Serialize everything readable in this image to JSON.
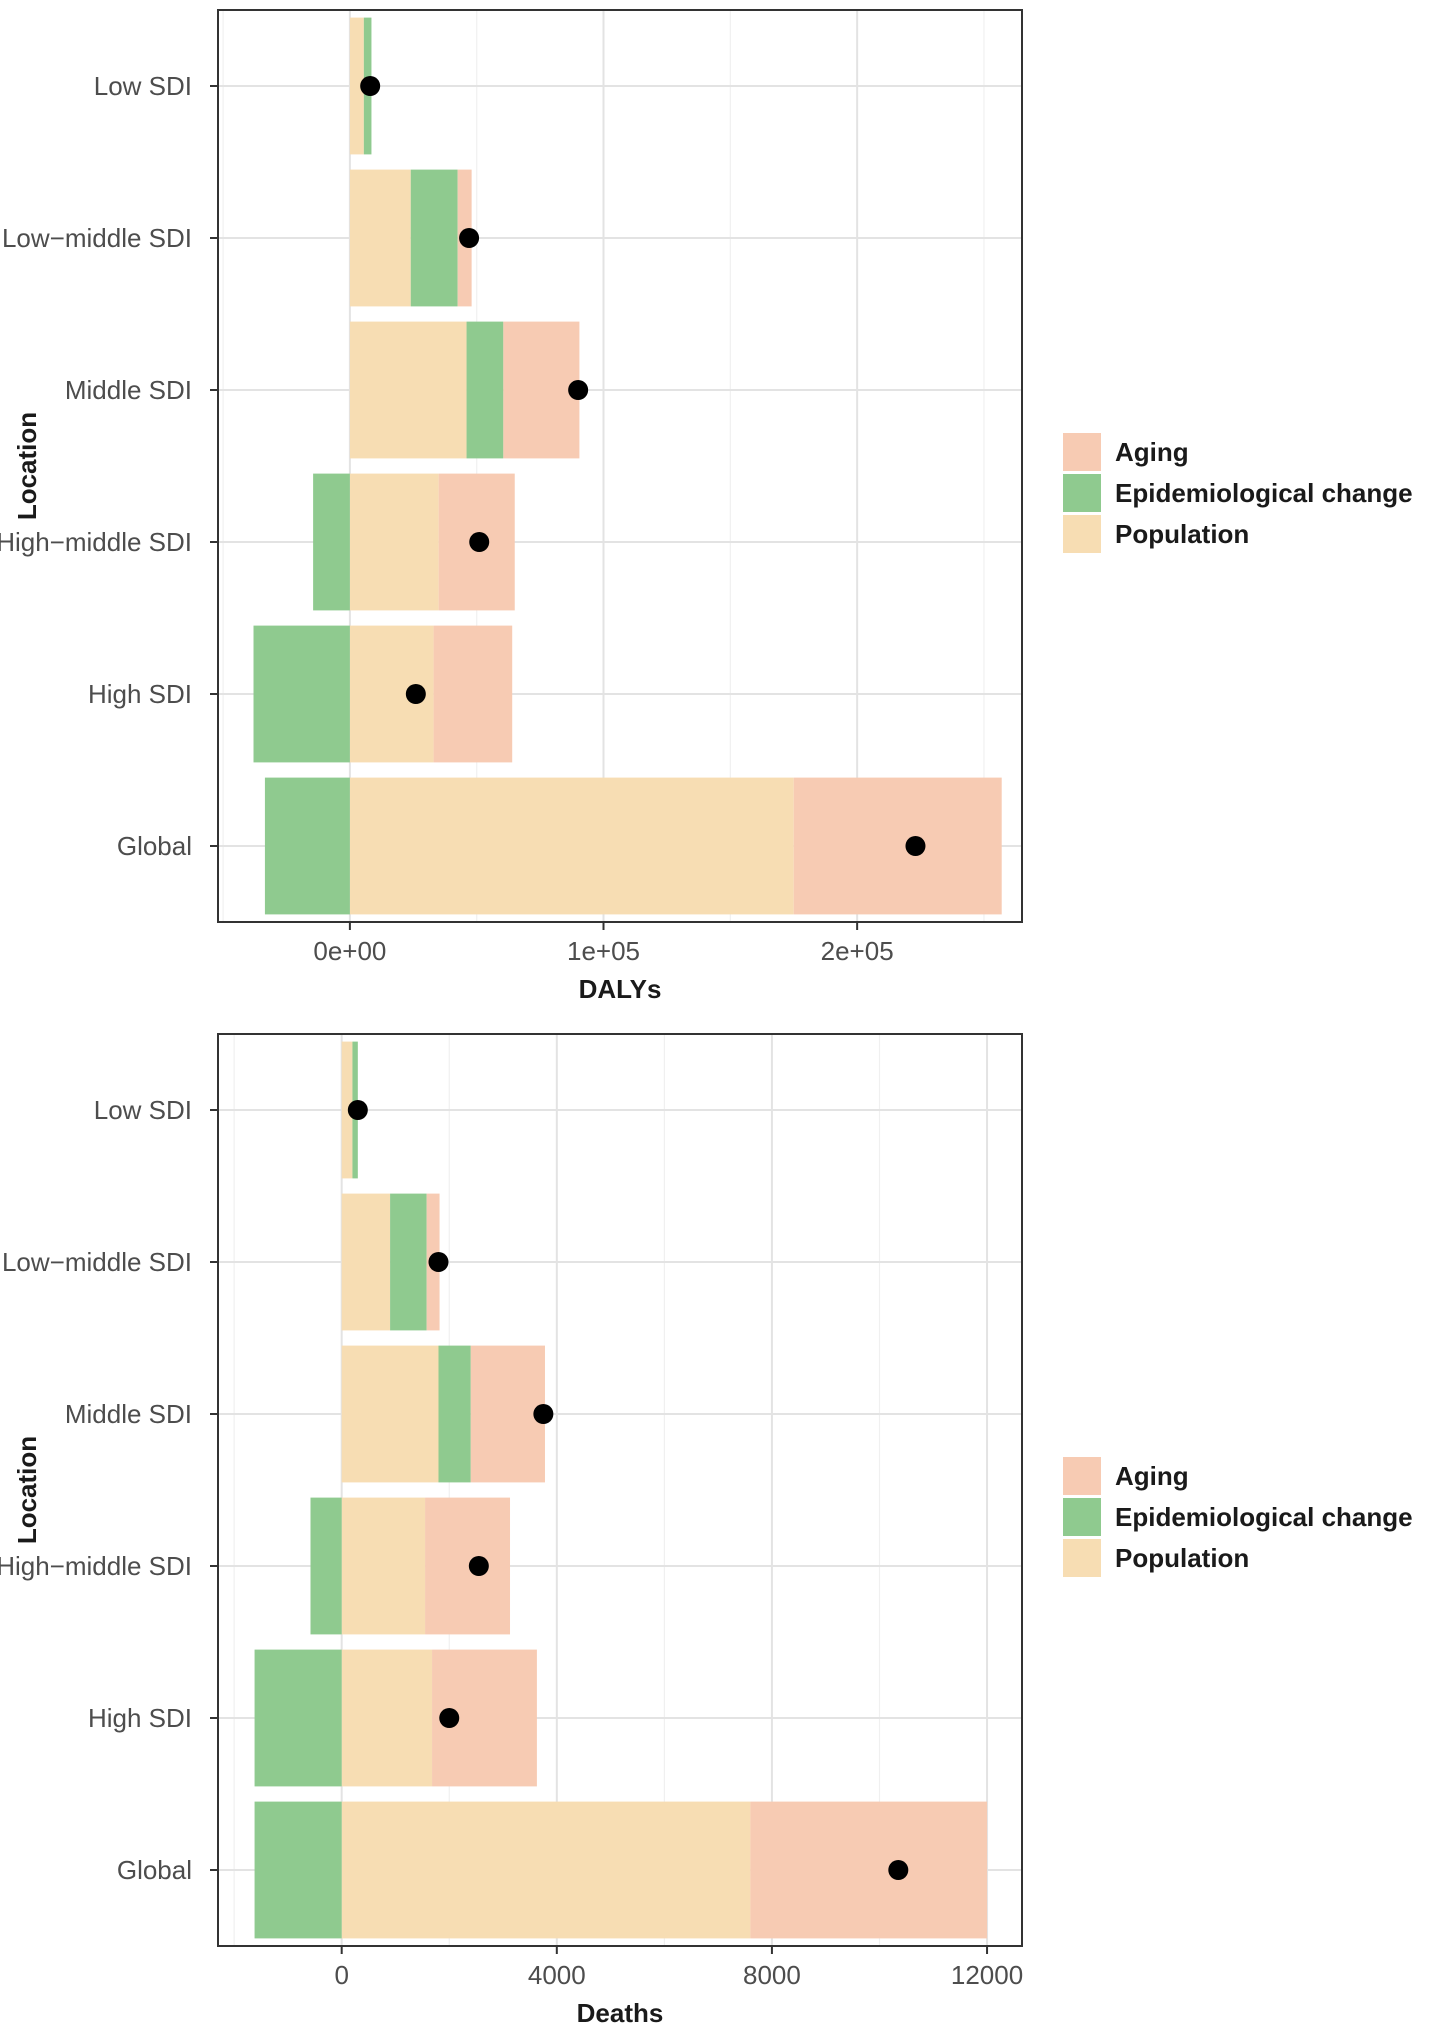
{
  "legend": [
    {
      "key": "aging",
      "label": "Aging",
      "color": "#F7CBB3"
    },
    {
      "key": "epi",
      "label": "Epidemiological change",
      "color": "#8FCA8F"
    },
    {
      "key": "pop",
      "label": "Population",
      "color": "#F7DDB3"
    }
  ],
  "chart_data": [
    {
      "type": "bar",
      "orientation": "horizontal",
      "stacking": "diverging",
      "xlabel": "DALYs",
      "ylabel": "Location",
      "xlim": [
        -52000,
        265000
      ],
      "x_ticks": [
        {
          "value": 0,
          "label": "0e+00"
        },
        {
          "value": 100000,
          "label": "1e+05"
        },
        {
          "value": 200000,
          "label": "2e+05"
        }
      ],
      "categories": [
        "Low SDI",
        "Low−middle SDI",
        "Middle SDI",
        "High−middle SDI",
        "High SDI",
        "Global"
      ],
      "series": [
        {
          "name": "Population",
          "values": [
            5500,
            24000,
            46000,
            35000,
            33000,
            175000
          ]
        },
        {
          "name": "Epidemiological change",
          "values": [
            3000,
            18500,
            14500,
            -14500,
            -38000,
            -33500
          ]
        },
        {
          "name": "Aging",
          "values": [
            0,
            5500,
            30000,
            30000,
            31000,
            82000
          ]
        }
      ],
      "overall": [
        8000,
        47000,
        90000,
        51000,
        26000,
        223000
      ]
    },
    {
      "type": "bar",
      "orientation": "horizontal",
      "stacking": "diverging",
      "xlabel": "Deaths",
      "ylabel": "Location",
      "xlim": [
        -2300,
        12650
      ],
      "x_ticks": [
        {
          "value": 0,
          "label": "0"
        },
        {
          "value": 4000,
          "label": "4000"
        },
        {
          "value": 8000,
          "label": "8000"
        },
        {
          "value": 12000,
          "label": "12000"
        }
      ],
      "categories": [
        "Low SDI",
        "Low−middle SDI",
        "Middle SDI",
        "High−middle SDI",
        "High SDI",
        "Global"
      ],
      "series": [
        {
          "name": "Population",
          "values": [
            200,
            900,
            1800,
            1550,
            1680,
            7600
          ]
        },
        {
          "name": "Epidemiological change",
          "values": [
            100,
            680,
            600,
            -580,
            -1620,
            -1620
          ]
        },
        {
          "name": "Aging",
          "values": [
            0,
            240,
            1380,
            1580,
            1950,
            4400
          ]
        }
      ],
      "overall": [
        300,
        1800,
        3750,
        2550,
        2000,
        10350
      ]
    }
  ]
}
